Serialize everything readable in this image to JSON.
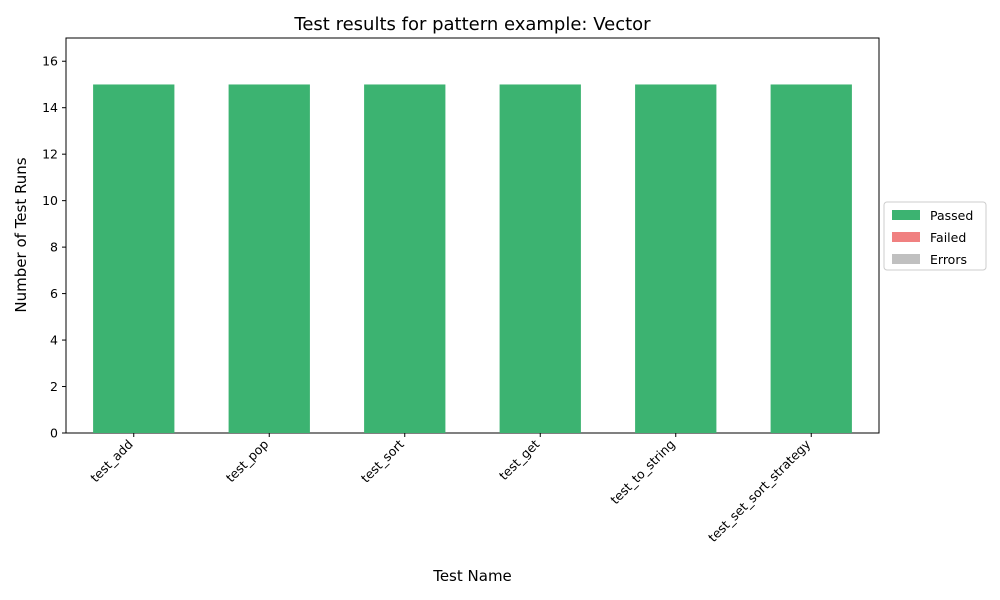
{
  "chart_data": {
    "type": "bar",
    "stacked": true,
    "title": "Test results for pattern example: Vector",
    "xlabel": "Test Name",
    "ylabel": "Number of Test Runs",
    "categories": [
      "test_add",
      "test_pop",
      "test_sort",
      "test_get",
      "test_to_string",
      "test_set_sort_strategy"
    ],
    "series": [
      {
        "name": "Passed",
        "color": "#3cb371",
        "values": [
          15,
          15,
          15,
          15,
          15,
          15
        ]
      },
      {
        "name": "Failed",
        "color": "#f08080",
        "values": [
          0,
          0,
          0,
          0,
          0,
          0
        ]
      },
      {
        "name": "Errors",
        "color": "#c0c0c0",
        "values": [
          0,
          0,
          0,
          0,
          0,
          0
        ]
      }
    ],
    "ylim": [
      0,
      17
    ],
    "yticks": [
      0,
      2,
      4,
      6,
      8,
      10,
      12,
      14,
      16
    ],
    "grid": false,
    "legend_position": "right"
  }
}
